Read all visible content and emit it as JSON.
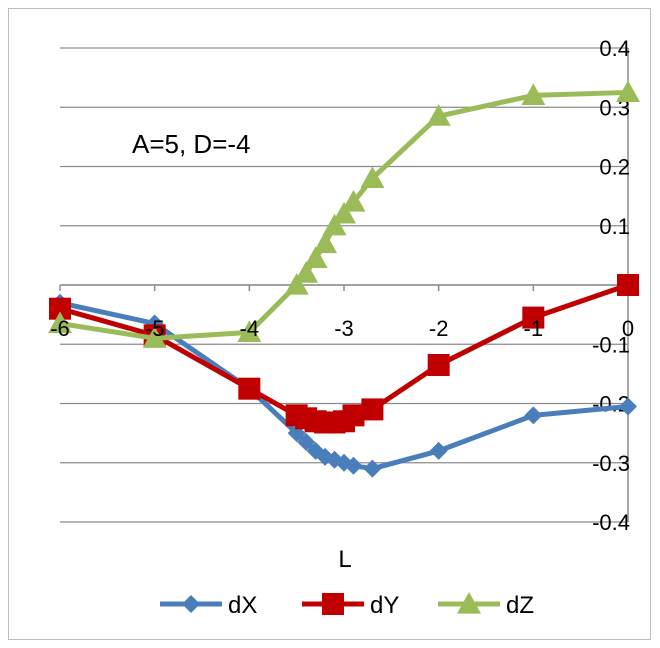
{
  "chart_data": {
    "type": "line",
    "title": "",
    "annotation": "A=5, D=-4",
    "xlabel": "L",
    "ylabel": "",
    "xlim": [
      -6,
      0
    ],
    "ylim": [
      -0.4,
      0.4
    ],
    "x_ticks": [
      -6,
      -5,
      -4,
      -3,
      -2,
      -1,
      0
    ],
    "x_tick_labels": [
      "-6",
      "-5",
      "-4",
      "-3",
      "-2",
      "-1",
      "0"
    ],
    "y_ticks": [
      0.4,
      0.3,
      0.2,
      0.1,
      0,
      -0.1,
      -0.2,
      -0.3,
      -0.4
    ],
    "y_tick_labels": [
      "0.4",
      "0.3",
      "0.2",
      "0.1",
      "0",
      "-0.1",
      "-0.2",
      "-0.3",
      "-0.4"
    ],
    "grid": true,
    "legend_position": "bottom",
    "series": [
      {
        "name": "dX",
        "color": "#4a7ebb",
        "marker": "diamond",
        "x": [
          -6,
          -5,
          -4,
          -3.5,
          -3.4,
          -3.3,
          -3.2,
          -3.1,
          -3,
          -2.9,
          -2.7,
          -2,
          -1,
          0
        ],
        "y": [
          -0.03,
          -0.065,
          -0.175,
          -0.25,
          -0.265,
          -0.28,
          -0.29,
          -0.295,
          -0.3,
          -0.305,
          -0.31,
          -0.28,
          -0.22,
          -0.205
        ]
      },
      {
        "name": "dY",
        "color": "#c00000",
        "marker": "square",
        "x": [
          -6,
          -5,
          -4,
          -3.5,
          -3.4,
          -3.3,
          -3.2,
          -3.1,
          -3,
          -2.9,
          -2.7,
          -2,
          -1,
          0
        ],
        "y": [
          -0.04,
          -0.085,
          -0.175,
          -0.22,
          -0.225,
          -0.23,
          -0.232,
          -0.232,
          -0.23,
          -0.22,
          -0.21,
          -0.135,
          -0.055,
          0
        ]
      },
      {
        "name": "dZ",
        "color": "#9bbb59",
        "marker": "triangle",
        "x": [
          -6,
          -5,
          -4,
          -3.5,
          -3.4,
          -3.3,
          -3.2,
          -3.1,
          -3,
          -2.9,
          -2.7,
          -2,
          -1,
          0
        ],
        "y": [
          -0.065,
          -0.09,
          -0.08,
          0.0,
          0.02,
          0.045,
          0.07,
          0.1,
          0.12,
          0.14,
          0.18,
          0.285,
          0.32,
          0.325
        ]
      }
    ]
  }
}
